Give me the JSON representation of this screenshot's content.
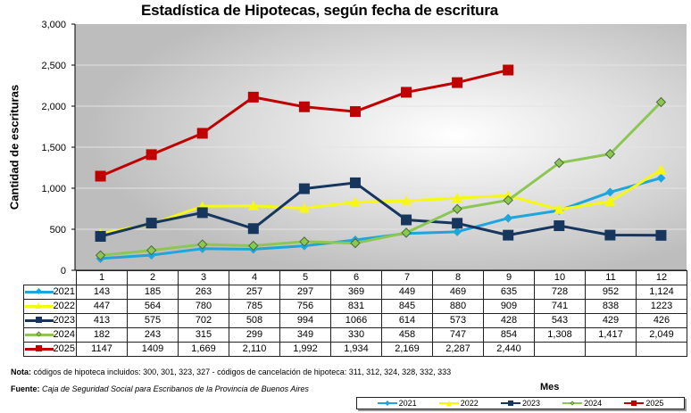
{
  "chart_data": {
    "type": "line",
    "title": "Estadística de Hipotecas, según fecha de escritura",
    "xlabel": "Mes",
    "ylabel": "Cantidad de escrituras",
    "ylim": [
      0,
      3000
    ],
    "yticks": [
      "0",
      "500",
      "1,000",
      "1,500",
      "2,000",
      "2,500",
      "3,000"
    ],
    "ytick_values": [
      0,
      500,
      1000,
      1500,
      2000,
      2500,
      3000
    ],
    "grid": true,
    "legend_position": "bottom-right",
    "categories": [
      "1",
      "2",
      "3",
      "4",
      "5",
      "6",
      "7",
      "8",
      "9",
      "10",
      "11",
      "12"
    ],
    "series": [
      {
        "name": "2021",
        "color": "#1ea6dc",
        "marker": "diamond",
        "values": [
          143,
          185,
          263,
          257,
          297,
          369,
          449,
          469,
          635,
          728,
          952,
          1124
        ],
        "labels": [
          "143",
          "185",
          "263",
          "257",
          "297",
          "369",
          "449",
          "469",
          "635",
          "728",
          "952",
          "1,124"
        ]
      },
      {
        "name": "2022",
        "color": "#f7f714",
        "marker": "triangle",
        "values": [
          447,
          564,
          780,
          785,
          756,
          831,
          845,
          880,
          909,
          741,
          838,
          1223
        ],
        "labels": [
          "447",
          "564",
          "780",
          "785",
          "756",
          "831",
          "845",
          "880",
          "909",
          "741",
          "838",
          "1223"
        ]
      },
      {
        "name": "2023",
        "color": "#17365d",
        "marker": "square",
        "values": [
          413,
          575,
          702,
          508,
          994,
          1066,
          614,
          573,
          428,
          543,
          429,
          426
        ],
        "labels": [
          "413",
          "575",
          "702",
          "508",
          "994",
          "1066",
          "614",
          "573",
          "428",
          "543",
          "429",
          "426"
        ]
      },
      {
        "name": "2024",
        "color": "#8cc653",
        "marker": "diamond-outline",
        "values": [
          182,
          243,
          315,
          299,
          349,
          330,
          458,
          747,
          854,
          1308,
          1417,
          2049
        ],
        "labels": [
          "182",
          "243",
          "315",
          "299",
          "349",
          "330",
          "458",
          "747",
          "854",
          "1,308",
          "1,417",
          "2,049"
        ]
      },
      {
        "name": "2025",
        "color": "#c00000",
        "marker": "square",
        "values": [
          1147,
          1409,
          1669,
          2110,
          1992,
          1934,
          2169,
          2287,
          2440,
          null,
          null,
          null
        ],
        "labels": [
          "1147",
          "1409",
          "1,669",
          "2,110",
          "1,992",
          "1,934",
          "2,169",
          "2,287",
          "2,440",
          "",
          "",
          ""
        ]
      }
    ]
  },
  "footer": {
    "nota_label": "Nota:",
    "nota_text": " códigos de hipoteca incluidos: 300, 301, 323, 327 - códigos de cancelación de hipoteca: 311, 312, 324, 328, 332, 333",
    "fuente_label": "Fuente:",
    "fuente_text": " Caja de Seguridad Social para Escribanos de la Provincia de Buenos Aires"
  }
}
